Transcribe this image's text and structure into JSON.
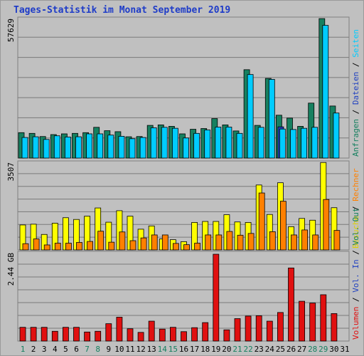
{
  "title": "Tages-Statistik im Monat September 2019",
  "colors": {
    "background": "#c0c0c0",
    "title": "#1e3cc8",
    "anfragen": "#168060",
    "dateien": "#00ccff",
    "seiten": "#2040c0",
    "besuche": "#ffff00",
    "rechner": "#ff8000",
    "volumen_out": "#2a8050",
    "volumen_in": "#2040c0",
    "volumen": "#e01010",
    "label_green": "#168060",
    "label_dark": "#000000"
  },
  "legend": {
    "panel1": [
      {
        "text": "Anfragen",
        "color": "#168060"
      },
      {
        "text": " / ",
        "color": "#000000"
      },
      {
        "text": "Dateien",
        "color": "#2040c0"
      },
      {
        "text": " / ",
        "color": "#000000"
      },
      {
        "text": "Seiten",
        "color": "#00ccff"
      }
    ],
    "panel2": [
      {
        "text": "Besuche",
        "color": "#e0d000"
      },
      {
        "text": " / ",
        "color": "#000000"
      },
      {
        "text": "Rechner",
        "color": "#ff8000"
      }
    ],
    "panel3": [
      {
        "text": "Volumen",
        "color": "#e01010"
      },
      {
        "text": " / ",
        "color": "#000000"
      },
      {
        "text": "Vol. In",
        "color": "#2040c0"
      },
      {
        "text": " / ",
        "color": "#000000"
      },
      {
        "text": "Vol. Out",
        "color": "#168060"
      }
    ]
  },
  "chart_data": {
    "type": "bar",
    "categories": [
      "1",
      "2",
      "3",
      "4",
      "5",
      "6",
      "7",
      "8",
      "9",
      "10",
      "11",
      "12",
      "13",
      "14",
      "15",
      "16",
      "17",
      "18",
      "19",
      "20",
      "21",
      "22",
      "23",
      "24",
      "25",
      "26",
      "27",
      "28",
      "29",
      "30",
      "31"
    ],
    "weekend_days": [
      "1",
      "7",
      "8",
      "14",
      "15",
      "21",
      "22",
      "28",
      "29"
    ],
    "panels": [
      {
        "max_label": "57629",
        "ymax": 57629,
        "series": [
          {
            "name": "Anfragen",
            "values": [
              10500,
              10200,
              8900,
              9700,
              10000,
              10200,
              10500,
              12700,
              11300,
              10900,
              8800,
              8900,
              13500,
              13700,
              13100,
              10000,
              11900,
              12200,
              16300,
              13700,
              11200,
              36500,
              13500,
              32900,
              17700,
              16500,
              13100,
              22700,
              57600,
              21500
            ]
          },
          {
            "name": "Dateien",
            "values": [
              8500,
              8800,
              7700,
              9200,
              8700,
              8800,
              10000,
              10000,
              9500,
              9000,
              8000,
              8500,
              12500,
              12700,
              12300,
              8300,
              10200,
              11600,
              12800,
              12800,
              10200,
              34500,
              12700,
              32500,
              12000,
              11800,
              12300,
              12700,
              54800,
              18600
            ]
          },
          {
            "name": "Seiten",
            "values": [
              0,
              0,
              0,
              0,
              0,
              0,
              0,
              0,
              0,
              0,
              0,
              0,
              0,
              0,
              0,
              0,
              0,
              0,
              0,
              0,
              0,
              0,
              0,
              0,
              12900,
              0,
              0,
              0,
              0,
              0
            ]
          }
        ]
      },
      {
        "max_label": "3507",
        "ymax": 3507,
        "series": [
          {
            "name": "Besuche",
            "values": [
              1000,
              1030,
              620,
              1070,
              1290,
              1220,
              1350,
              1680,
              1110,
              1570,
              1350,
              830,
              960,
              440,
              410,
              330,
              1100,
              1140,
              1140,
              1410,
              1120,
              1100,
              2600,
              1420,
              2690,
              930,
              1260,
              1190,
              3500,
              1690
            ]
          },
          {
            "name": "Rechner",
            "values": [
              250,
              440,
              200,
              270,
              270,
              300,
              340,
              750,
              310,
              720,
              370,
              480,
              600,
              600,
              260,
              210,
              270,
              600,
              600,
              740,
              590,
              660,
              2280,
              730,
              1950,
              600,
              800,
              600,
              2020,
              780
            ]
          }
        ]
      },
      {
        "max_label": "2.44 GB",
        "ymax": 2.44,
        "series": [
          {
            "name": "Volumen",
            "values": [
              0.38,
              0.38,
              0.38,
              0.27,
              0.38,
              0.38,
              0.25,
              0.27,
              0.48,
              0.66,
              0.34,
              0.24,
              0.55,
              0.33,
              0.38,
              0.26,
              0.37,
              0.51,
              2.4,
              0.31,
              0.62,
              0.69,
              0.7,
              0.55,
              0.79,
              2.02,
              1.1,
              1.05,
              1.28,
              0.76
            ]
          }
        ]
      }
    ]
  }
}
